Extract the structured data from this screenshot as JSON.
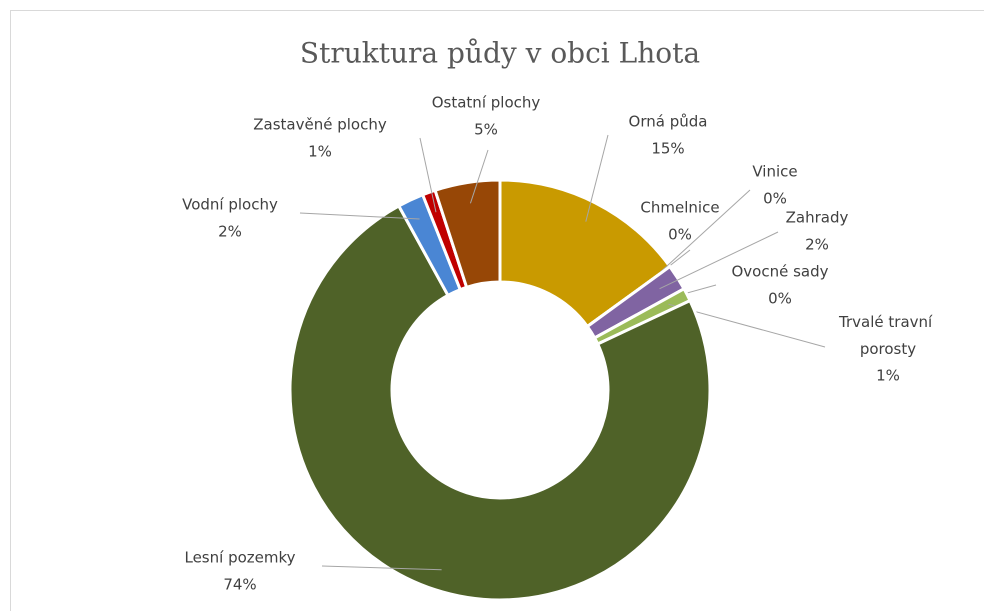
{
  "chart_data": {
    "type": "doughnut",
    "title": "Struktura půdy v obci Lhota",
    "categories": [
      "Orná půda",
      "Chmelnice",
      "Vinice",
      "Zahrady",
      "Ovocné sady",
      "Trvalé travní porosty",
      "Lesní pozemky",
      "Vodní plochy",
      "Zastavěné plochy",
      "Ostatní plochy"
    ],
    "series": [
      {
        "name": "Struktura půdy v obci Lhota",
        "values": [
          15,
          0,
          0,
          2,
          0,
          1,
          74,
          2,
          1,
          5
        ],
        "value_labels": [
          "15%",
          "0%",
          "0%",
          "2%",
          "0%",
          "1%",
          "74%",
          "2%",
          "1%",
          "5%"
        ],
        "colors": [
          "#c99a00",
          "#7f7f7f",
          "#a5a5a5",
          "#8064a2",
          "#f79646",
          "#9bbb59",
          "#4f6228",
          "#4a86d4",
          "#c00000",
          "#974706"
        ]
      }
    ]
  }
}
